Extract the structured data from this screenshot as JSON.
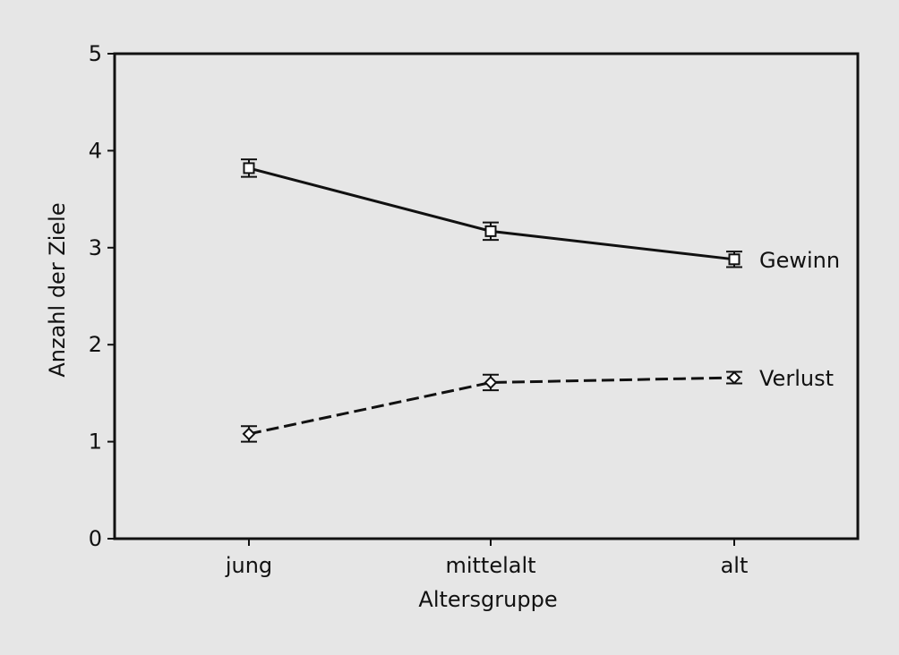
{
  "chart_data": {
    "type": "line",
    "xlabel": "Altersgruppe",
    "ylabel": "Anzahl der Ziele",
    "categories": [
      "jung",
      "mittelalt",
      "alt"
    ],
    "ylim": [
      0,
      5
    ],
    "yticks": [
      0,
      1,
      2,
      3,
      4,
      5
    ],
    "grid": false,
    "series": [
      {
        "name": "Gewinn",
        "values": [
          3.82,
          3.17,
          2.88
        ],
        "error": [
          0.09,
          0.09,
          0.08
        ],
        "marker": "square",
        "line_style": "solid"
      },
      {
        "name": "Verlust",
        "values": [
          1.08,
          1.61,
          1.66
        ],
        "error": [
          0.08,
          0.08,
          0.06
        ],
        "marker": "diamond",
        "line_style": "dashed"
      }
    ],
    "colors": {
      "background": "#e6e6e6",
      "ink": "#111111",
      "marker_fill": "#ffffff"
    }
  }
}
